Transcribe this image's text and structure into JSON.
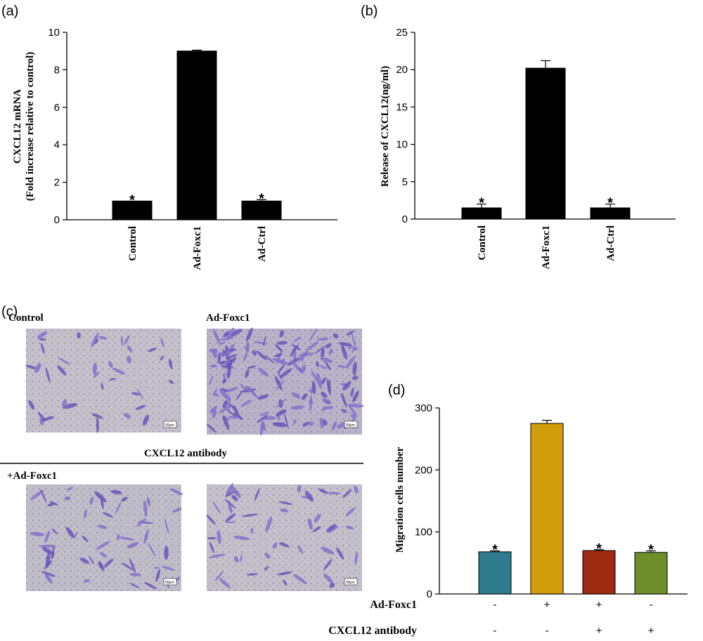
{
  "panel_labels": {
    "a": "(a)",
    "b": "(b)",
    "c": "(c)",
    "d": "(d)"
  },
  "chart_data": [
    {
      "id": "a",
      "type": "bar",
      "ylabel": "CXCL12 mRNA",
      "ylabel2": "(Fold increase relative to control)",
      "categories": [
        "Control",
        "Ad-Foxc1",
        "Ad-Ctrl"
      ],
      "values": [
        1.0,
        9.0,
        1.0
      ],
      "errors": [
        0.0,
        0.05,
        0.07
      ],
      "annotations": [
        "*",
        "",
        "*"
      ],
      "ylim": [
        0,
        10
      ],
      "yticks": [
        0,
        2,
        4,
        6,
        8,
        10
      ],
      "bar_color": "#000000",
      "grid": false
    },
    {
      "id": "b",
      "type": "bar",
      "ylabel": "Release of CXCL12(ng/ml)",
      "categories": [
        "Control",
        "Ad-Foxc1",
        "Ad-Ctrl"
      ],
      "values": [
        1.5,
        20.2,
        1.5
      ],
      "errors": [
        0.5,
        1.0,
        0.5
      ],
      "annotations": [
        "*",
        "",
        "*"
      ],
      "ylim": [
        0,
        25
      ],
      "yticks": [
        0,
        5,
        10,
        15,
        20,
        25
      ],
      "bar_color": "#000000",
      "grid": false
    },
    {
      "id": "d",
      "type": "bar",
      "ylabel": "Migration cells  number",
      "categories": [
        "",
        "",
        "",
        ""
      ],
      "values": [
        68,
        275,
        70,
        67
      ],
      "errors": [
        1.5,
        5,
        1.5,
        2.5
      ],
      "annotations": [
        "*",
        "",
        "*",
        "*"
      ],
      "colors": [
        "#2e7a8f",
        "#d39e0b",
        "#9e2a10",
        "#6e8e2c"
      ],
      "ylim": [
        0,
        300
      ],
      "yticks": [
        0,
        100,
        200,
        300
      ],
      "conditions": [
        {
          "name": "Ad-Foxc1",
          "values": [
            "-",
            "+",
            "+",
            "-"
          ]
        },
        {
          "name": "CXCL12 antibody",
          "values": [
            "-",
            "-",
            "+",
            "+"
          ]
        }
      ],
      "grid": false
    }
  ],
  "micrographs": {
    "labels": {
      "control": "Control",
      "foxc1": "Ad-Foxc1",
      "antibody": "CXCL12 antibody",
      "plus_foxc1": "+Ad-Foxc1"
    },
    "scale_bar": "50μm"
  }
}
